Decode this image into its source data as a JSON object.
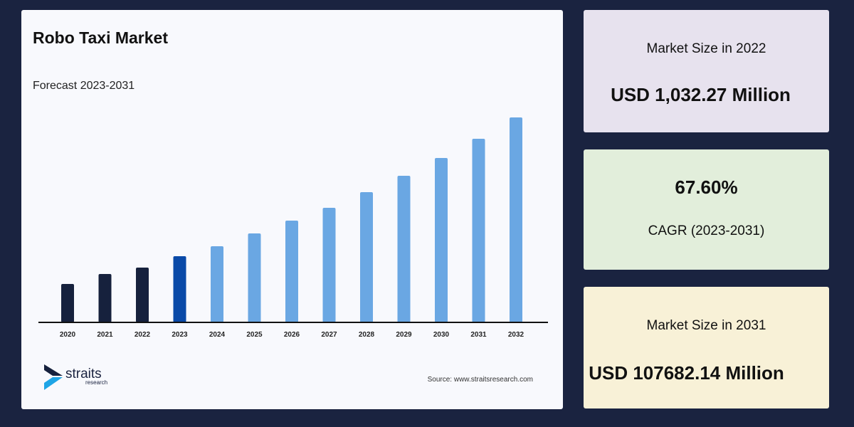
{
  "chart_data": {
    "type": "bar",
    "title": "Robo Taxi Market",
    "subtitle": "Forecast 2023-2031",
    "categories": [
      "2020",
      "2021",
      "2022",
      "2023",
      "2024",
      "2025",
      "2026",
      "2027",
      "2028",
      "2029",
      "2030",
      "2031",
      "2032"
    ],
    "values": [
      54,
      68,
      77,
      93,
      107,
      125,
      143,
      161,
      183,
      206,
      231,
      258,
      288
    ],
    "ylim": [
      0,
      300
    ],
    "grid": false,
    "colors": {
      "historical": "#16213d",
      "base_year": "#0a4aa8",
      "forecast": "#6aa7e3"
    },
    "source": "Source: www.straitsresearch.com"
  },
  "logo": {
    "name": "straits",
    "tagline": "research"
  },
  "stats": [
    {
      "label": "Market Size in 2022",
      "value": "USD 1,032.27 Million",
      "bg": "#e7e2ee"
    },
    {
      "value": "67.60%",
      "label": "CAGR (2023-2031)",
      "bg": "#e2eedb"
    },
    {
      "label": "Market Size in 2031",
      "value": "USD 107682.14 Million",
      "bg": "#f8f1d7"
    }
  ]
}
